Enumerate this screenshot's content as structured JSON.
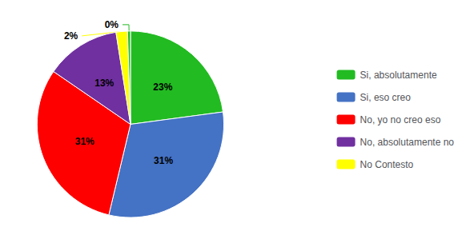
{
  "chart_data": {
    "type": "pie",
    "categories": [
      "Si, absolutamente",
      "Si, eso creo",
      "No, yo no creo eso",
      "No, absolutamente no",
      "No Contesto",
      null
    ],
    "values": [
      23,
      31,
      31,
      13,
      2,
      0.5
    ],
    "value_labels": [
      "23%",
      "31%",
      "31%",
      "13%",
      "2%",
      "0%"
    ],
    "colors": [
      "#22bb22",
      "#4472c4",
      "#ff0000",
      "#7030a0",
      "#ffff00",
      "#22bb22"
    ],
    "data_labels": true,
    "legend": "right"
  }
}
